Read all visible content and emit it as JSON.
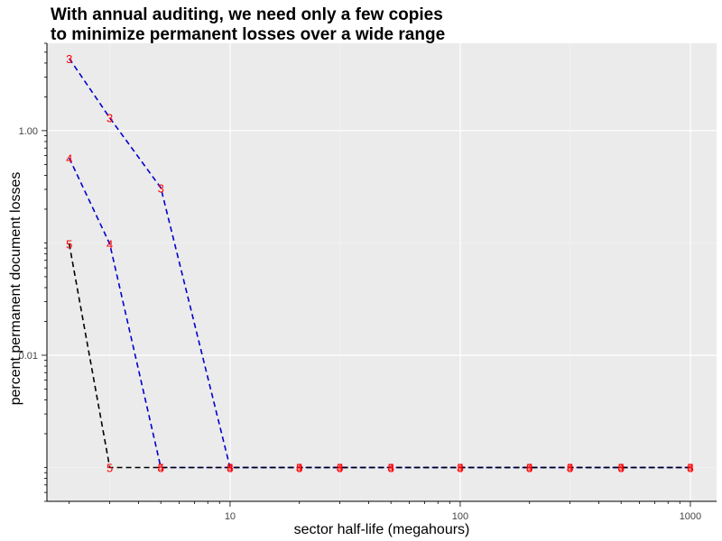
{
  "chart_data": {
    "type": "line",
    "title_lines": [
      "With annual auditing, we need only a few copies",
      "to minimize permanent losses over a wide range"
    ],
    "xlabel": "sector half-life (megahours)",
    "ylabel": "percent permanent document losses",
    "x_scale": "log",
    "y_scale": "log",
    "xlim": [
      1.6,
      1300
    ],
    "ylim": [
      0.0005,
      6
    ],
    "x_ticks": [
      {
        "value": 10,
        "label": "10"
      },
      {
        "value": 100,
        "label": "100"
      },
      {
        "value": 1000,
        "label": "1000"
      }
    ],
    "y_ticks": [
      {
        "value": 1,
        "label": "1.00"
      },
      {
        "value": 0.01,
        "label": "0.01"
      }
    ],
    "grid": true,
    "background": "#ebebeb",
    "series": [
      {
        "marker": "3",
        "color": "#0000cc",
        "x": [
          2,
          3,
          5,
          10,
          20,
          30,
          50,
          100,
          200,
          300,
          500,
          1000
        ],
        "y": [
          4.4,
          1.3,
          0.31,
          0.001,
          0.001,
          0.001,
          0.001,
          0.001,
          0.001,
          0.001,
          0.001,
          0.001
        ]
      },
      {
        "marker": "4",
        "color": "#0000cc",
        "x": [
          2,
          3,
          5,
          10,
          20,
          30,
          50,
          100,
          200,
          300,
          500,
          1000
        ],
        "y": [
          0.57,
          0.098,
          0.001,
          0.001,
          0.001,
          0.001,
          0.001,
          0.001,
          0.001,
          0.001,
          0.001,
          0.001
        ]
      },
      {
        "marker": "5",
        "color": "#000000",
        "x": [
          2,
          3,
          5,
          10,
          20,
          30,
          50,
          100,
          200,
          300,
          500,
          1000
        ],
        "y": [
          0.098,
          0.001,
          0.001,
          0.001,
          0.001,
          0.001,
          0.001,
          0.001,
          0.001,
          0.001,
          0.001,
          0.001
        ]
      }
    ]
  }
}
